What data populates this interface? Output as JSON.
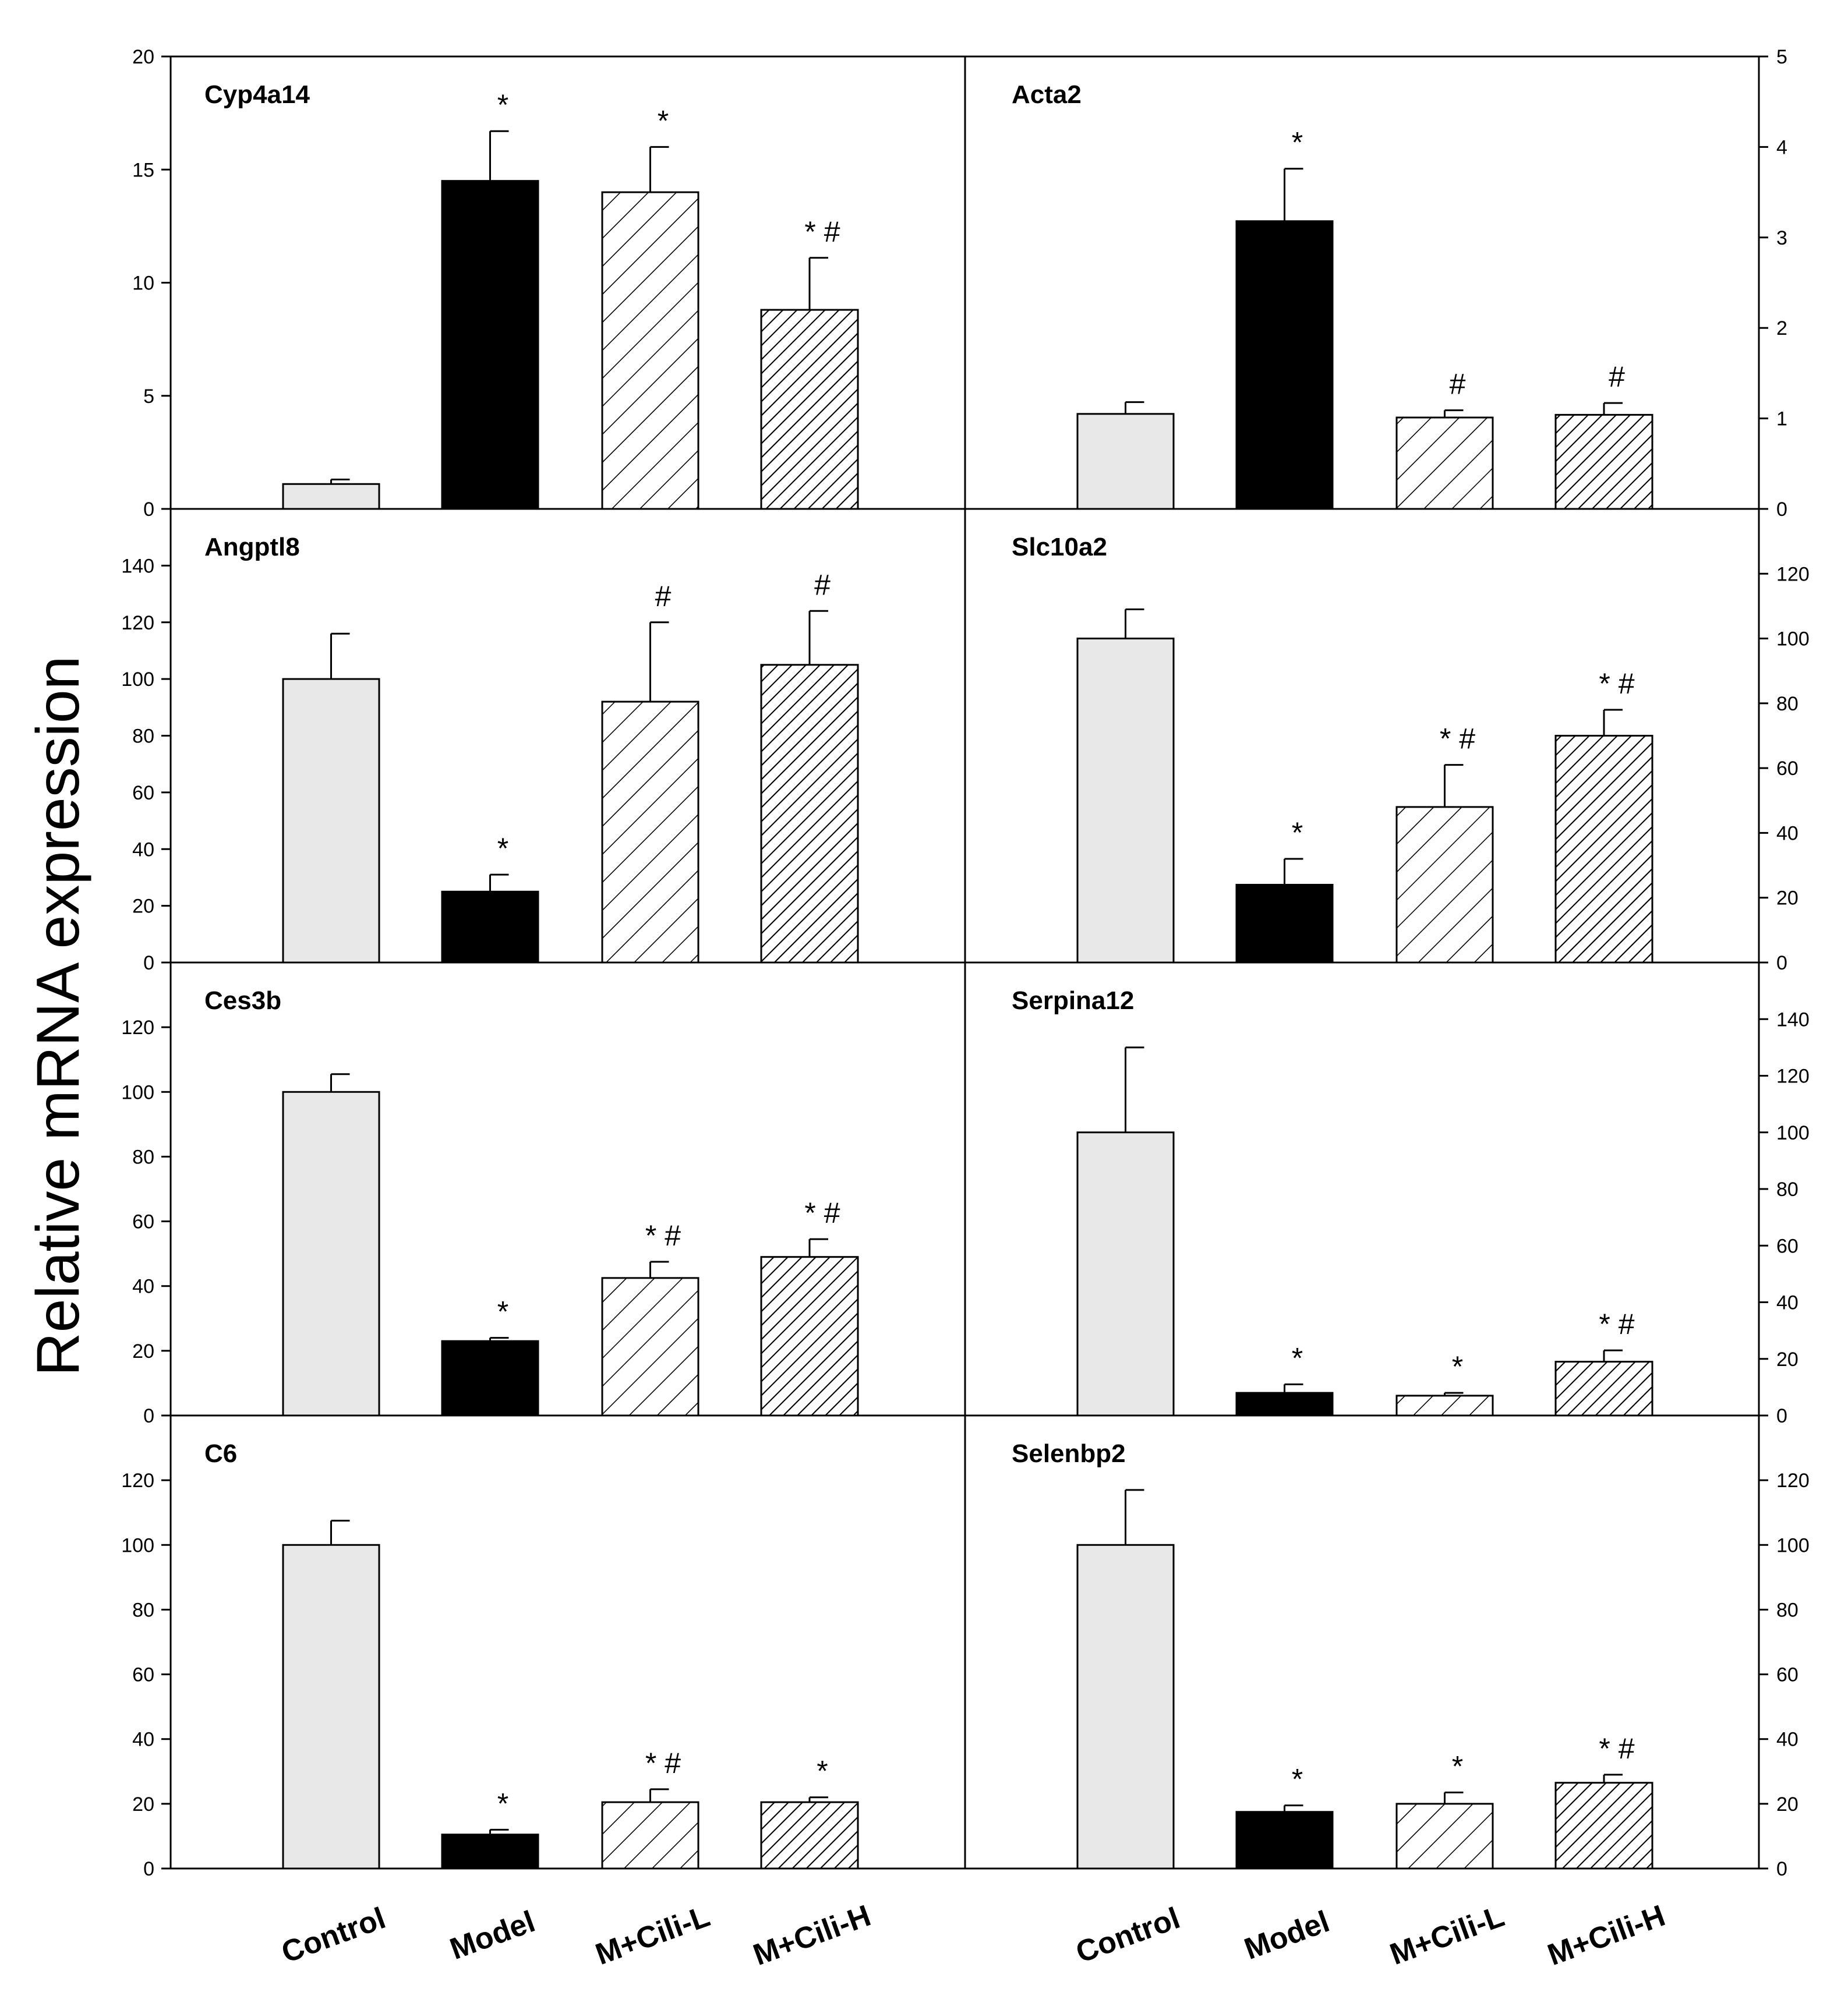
{
  "chart_data": {
    "type": "bar",
    "ylabel": "Relative mRNA expression",
    "categories": [
      "Control",
      "Model",
      "M+Cili-L",
      "M+Cili-H"
    ],
    "colors": {
      "control": "#e8e8e8",
      "model": "#000000",
      "pattern": "#000000"
    },
    "panels": [
      {
        "title": "Cyp4a14",
        "ylim": [
          0,
          20
        ],
        "ticks": [
          0,
          5,
          10,
          15,
          20
        ],
        "axis": "left",
        "values": [
          1.1,
          14.5,
          14.0,
          8.8
        ],
        "errors": [
          0.2,
          2.2,
          2.0,
          2.3
        ],
        "labels": [
          "",
          "*",
          "*",
          "*#"
        ]
      },
      {
        "title": "Acta2",
        "ylim": [
          0,
          5
        ],
        "ticks": [
          0,
          1,
          2,
          3,
          4,
          5
        ],
        "axis": "right",
        "values": [
          1.05,
          3.18,
          1.01,
          1.04
        ],
        "errors": [
          0.13,
          0.58,
          0.08,
          0.13
        ],
        "labels": [
          "",
          "*",
          "#",
          "#"
        ]
      },
      {
        "title": "Angptl8",
        "ylim": [
          0,
          160
        ],
        "ticks": [
          0,
          20,
          40,
          60,
          80,
          100,
          120,
          140
        ],
        "axis": "left",
        "values": [
          100,
          25,
          92,
          105
        ],
        "errors": [
          16,
          6,
          28,
          19
        ],
        "labels": [
          "",
          "*",
          "#",
          "#"
        ]
      },
      {
        "title": "Slc10a2",
        "ylim": [
          0,
          140
        ],
        "ticks": [
          0,
          20,
          40,
          60,
          80,
          100,
          120
        ],
        "axis": "right",
        "values": [
          100,
          24,
          48,
          70
        ],
        "errors": [
          9,
          8,
          13,
          8
        ],
        "labels": [
          "",
          "*",
          "*#",
          "*#"
        ]
      },
      {
        "title": "Ces3b",
        "ylim": [
          0,
          140
        ],
        "ticks": [
          0,
          20,
          40,
          60,
          80,
          100,
          120
        ],
        "axis": "left",
        "values": [
          100,
          23,
          42.5,
          49
        ],
        "errors": [
          5.5,
          1,
          5,
          5.5
        ],
        "labels": [
          "",
          "*",
          "*#",
          "*#"
        ]
      },
      {
        "title": "Serpina12",
        "ylim": [
          0,
          160
        ],
        "ticks": [
          0,
          20,
          40,
          60,
          80,
          100,
          120,
          140
        ],
        "axis": "right",
        "values": [
          100,
          8,
          7,
          19
        ],
        "errors": [
          30,
          3,
          1,
          4
        ],
        "labels": [
          "",
          "*",
          "*",
          "*#"
        ]
      },
      {
        "title": "C6",
        "ylim": [
          0,
          140
        ],
        "ticks": [
          0,
          20,
          40,
          60,
          80,
          100,
          120
        ],
        "axis": "left",
        "values": [
          100,
          10.5,
          20.5,
          20.5
        ],
        "errors": [
          7.5,
          1.5,
          4,
          1.5
        ],
        "labels": [
          "",
          "*",
          "*#",
          "*"
        ]
      },
      {
        "title": "Selenbp2",
        "ylim": [
          0,
          140
        ],
        "ticks": [
          0,
          20,
          40,
          60,
          80,
          100,
          120
        ],
        "axis": "right",
        "values": [
          100,
          17.5,
          20,
          26.5
        ],
        "errors": [
          17,
          2,
          3.5,
          2.5
        ],
        "labels": [
          "",
          "*",
          "*",
          "*#"
        ]
      }
    ]
  }
}
